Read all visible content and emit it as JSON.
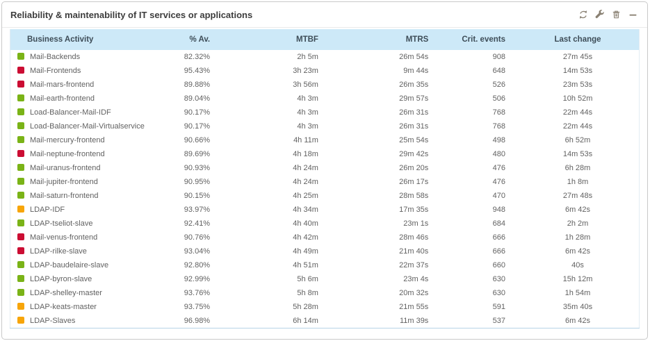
{
  "panel": {
    "title": "Reliability & maintenability of IT services or applications",
    "toolbar": {
      "icons": [
        "refresh-icon",
        "wrench-icon",
        "trash-icon",
        "minimize-icon"
      ]
    }
  },
  "colors": {
    "status_green": "#7ab317",
    "status_red": "#cb0d33",
    "status_orange": "#f7a509",
    "header_bg": "#cde9f8",
    "header_text": "#3e4d58",
    "body_text": "#616161",
    "icon_color": "#8a8173",
    "panel_border": "#c9c9c9",
    "table_bottom_border": "#b7d3e6"
  },
  "table": {
    "columns": [
      {
        "label": "Business Activity",
        "align": "left"
      },
      {
        "label": "% Av.",
        "align": "right"
      },
      {
        "label": "MTBF",
        "align": "right"
      },
      {
        "label": "MTRS",
        "align": "right"
      },
      {
        "label": "Crit. events",
        "align": "right"
      },
      {
        "label": "Last change",
        "align": "center"
      }
    ],
    "rows": [
      {
        "status": "green",
        "activity": "Mail-Backends",
        "availability": "82.32%",
        "mtbf": "2h 5m",
        "mtrs": "26m 54s",
        "crit_events": "908",
        "last_change": "27m 45s"
      },
      {
        "status": "red",
        "activity": "Mail-Frontends",
        "availability": "95.43%",
        "mtbf": "3h 23m",
        "mtrs": "9m 44s",
        "crit_events": "648",
        "last_change": "14m 53s"
      },
      {
        "status": "red",
        "activity": "Mail-mars-frontend",
        "availability": "89.88%",
        "mtbf": "3h 56m",
        "mtrs": "26m 35s",
        "crit_events": "526",
        "last_change": "23m 53s"
      },
      {
        "status": "green",
        "activity": "Mail-earth-frontend",
        "availability": "89.04%",
        "mtbf": "4h 3m",
        "mtrs": "29m 57s",
        "crit_events": "506",
        "last_change": "10h 52m"
      },
      {
        "status": "green",
        "activity": "Load-Balancer-Mail-IDF",
        "availability": "90.17%",
        "mtbf": "4h 3m",
        "mtrs": "26m 31s",
        "crit_events": "768",
        "last_change": "22m 44s"
      },
      {
        "status": "green",
        "activity": "Load-Balancer-Mail-Virtualservice",
        "availability": "90.17%",
        "mtbf": "4h 3m",
        "mtrs": "26m 31s",
        "crit_events": "768",
        "last_change": "22m 44s"
      },
      {
        "status": "green",
        "activity": "Mail-mercury-frontend",
        "availability": "90.66%",
        "mtbf": "4h 11m",
        "mtrs": "25m 54s",
        "crit_events": "498",
        "last_change": "6h 52m"
      },
      {
        "status": "red",
        "activity": "Mail-neptune-frontend",
        "availability": "89.69%",
        "mtbf": "4h 18m",
        "mtrs": "29m 42s",
        "crit_events": "480",
        "last_change": "14m 53s"
      },
      {
        "status": "green",
        "activity": "Mail-uranus-frontend",
        "availability": "90.93%",
        "mtbf": "4h 24m",
        "mtrs": "26m 20s",
        "crit_events": "476",
        "last_change": "6h 28m"
      },
      {
        "status": "green",
        "activity": "Mail-jupiter-frontend",
        "availability": "90.95%",
        "mtbf": "4h 24m",
        "mtrs": "26m 17s",
        "crit_events": "476",
        "last_change": "1h 8m"
      },
      {
        "status": "green",
        "activity": "Mail-saturn-frontend",
        "availability": "90.15%",
        "mtbf": "4h 25m",
        "mtrs": "28m 58s",
        "crit_events": "470",
        "last_change": "27m 48s"
      },
      {
        "status": "orange",
        "activity": "LDAP-IDF",
        "availability": "93.97%",
        "mtbf": "4h 34m",
        "mtrs": "17m 35s",
        "crit_events": "948",
        "last_change": "6m 42s"
      },
      {
        "status": "green",
        "activity": "LDAP-tseliot-slave",
        "availability": "92.41%",
        "mtbf": "4h 40m",
        "mtrs": "23m 1s",
        "crit_events": "684",
        "last_change": "2h 2m"
      },
      {
        "status": "red",
        "activity": "Mail-venus-frontend",
        "availability": "90.76%",
        "mtbf": "4h 42m",
        "mtrs": "28m 46s",
        "crit_events": "666",
        "last_change": "1h 28m"
      },
      {
        "status": "red",
        "activity": "LDAP-rilke-slave",
        "availability": "93.04%",
        "mtbf": "4h 49m",
        "mtrs": "21m 40s",
        "crit_events": "666",
        "last_change": "6m 42s"
      },
      {
        "status": "green",
        "activity": "LDAP-baudelaire-slave",
        "availability": "92.80%",
        "mtbf": "4h 51m",
        "mtrs": "22m 37s",
        "crit_events": "660",
        "last_change": "40s"
      },
      {
        "status": "green",
        "activity": "LDAP-byron-slave",
        "availability": "92.99%",
        "mtbf": "5h 6m",
        "mtrs": "23m 4s",
        "crit_events": "630",
        "last_change": "15h 12m"
      },
      {
        "status": "green",
        "activity": "LDAP-shelley-master",
        "availability": "93.76%",
        "mtbf": "5h 8m",
        "mtrs": "20m 32s",
        "crit_events": "630",
        "last_change": "1h 54m"
      },
      {
        "status": "orange",
        "activity": "LDAP-keats-master",
        "availability": "93.75%",
        "mtbf": "5h 28m",
        "mtrs": "21m 55s",
        "crit_events": "591",
        "last_change": "35m 40s"
      },
      {
        "status": "orange",
        "activity": "LDAP-Slaves",
        "availability": "96.98%",
        "mtbf": "6h 14m",
        "mtrs": "11m 39s",
        "crit_events": "537",
        "last_change": "6m 42s"
      }
    ]
  }
}
